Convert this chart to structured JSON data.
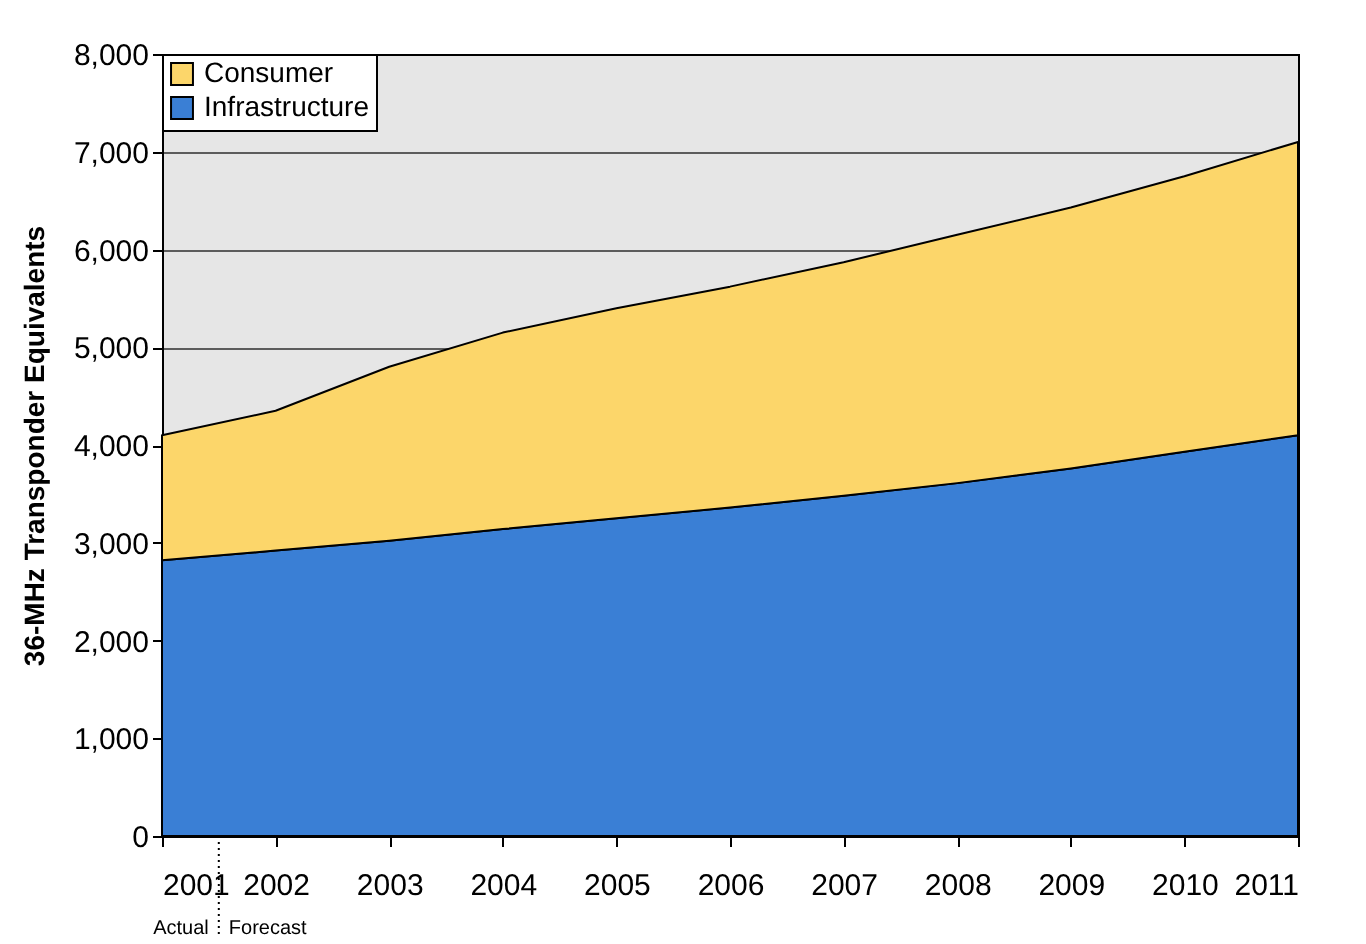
{
  "chart_data": {
    "type": "area",
    "stacked": true,
    "ylabel": "36-MHz Transponder Equivalents",
    "x": [
      2001,
      2002,
      2003,
      2004,
      2005,
      2006,
      2007,
      2008,
      2009,
      2010,
      2011
    ],
    "series": [
      {
        "name": "Infrastructure",
        "color": "#3a7fd5",
        "values": [
          2820,
          2920,
          3020,
          3140,
          3250,
          3360,
          3480,
          3610,
          3760,
          3930,
          4100
        ]
      },
      {
        "name": "Consumer",
        "color": "#fcd66a",
        "values": [
          1280,
          1430,
          1780,
          2010,
          2150,
          2260,
          2390,
          2540,
          2670,
          2820,
          3000
        ]
      }
    ],
    "xlim": [
      2001,
      2011
    ],
    "xticks": [
      2001,
      2002,
      2003,
      2004,
      2005,
      2006,
      2007,
      2008,
      2009,
      2010,
      2011
    ],
    "ylim": [
      0,
      8000
    ],
    "yticks": [
      0,
      {
        "value": 1000,
        "label": "1,000"
      },
      {
        "value": 2000,
        "label": "2,000"
      },
      {
        "value": 3000,
        "label": "3,000"
      },
      {
        "value": 4000,
        "label": "4,000"
      },
      {
        "value": 5000,
        "label": "5,000"
      },
      {
        "value": 6000,
        "label": "6,000"
      },
      {
        "value": 7000,
        "label": "7,000"
      },
      {
        "value": 8000,
        "label": "8,000"
      }
    ],
    "grid": "y",
    "legend": "top left",
    "annotations": [
      "Actual",
      "Forecast"
    ]
  }
}
